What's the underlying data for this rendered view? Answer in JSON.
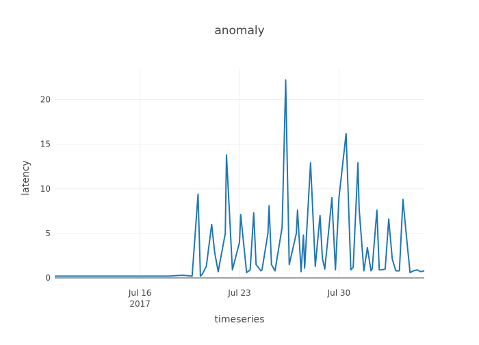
{
  "chart_data": {
    "type": "line",
    "title": "anomaly",
    "xlabel": "timeseries",
    "ylabel": "latency",
    "x_range": [
      "2017-07-10",
      "2017-08-05"
    ],
    "ylim": [
      0,
      23.5
    ],
    "x_ticks": [
      {
        "date": "2017-07-16",
        "label": "Jul 16",
        "sublabel": "2017"
      },
      {
        "date": "2017-07-23",
        "label": "Jul 23",
        "sublabel": ""
      },
      {
        "date": "2017-07-30",
        "label": "Jul 30",
        "sublabel": ""
      }
    ],
    "y_ticks": [
      0,
      5,
      10,
      15,
      20
    ],
    "grid": true,
    "color": "#1f77b4",
    "series": [
      {
        "x": [
          "2017-07-10 00:00",
          "2017-07-11 00:00",
          "2017-07-12 00:00",
          "2017-07-13 00:00",
          "2017-07-14 00:00",
          "2017-07-15 00:00",
          "2017-07-16 00:00",
          "2017-07-17 00:00",
          "2017-07-18 00:00",
          "2017-07-19 00:00",
          "2017-07-19 16:00",
          "2017-07-20 02:00",
          "2017-07-20 06:00",
          "2017-07-20 09:00",
          "2017-07-20 16:00",
          "2017-07-21 01:00",
          "2017-07-21 06:00",
          "2017-07-21 12:00",
          "2017-07-22 00:00",
          "2017-07-22 02:00",
          "2017-07-22 12:00",
          "2017-07-23 00:00",
          "2017-07-23 02:00",
          "2017-07-23 12:00",
          "2017-07-23 18:00",
          "2017-07-24 00:00",
          "2017-07-24 04:00",
          "2017-07-24 12:00",
          "2017-07-24 14:00",
          "2017-07-25 00:00",
          "2017-07-25 02:00",
          "2017-07-25 06:00",
          "2017-07-25 12:00",
          "2017-07-26 00:00",
          "2017-07-26 06:00",
          "2017-07-26 08:00",
          "2017-07-26 12:00",
          "2017-07-27 00:00",
          "2017-07-27 02:00",
          "2017-07-27 08:00",
          "2017-07-27 12:00",
          "2017-07-27 14:00",
          "2017-07-28 00:00",
          "2017-07-28 08:00",
          "2017-07-28 16:00",
          "2017-07-28 20:00",
          "2017-07-29 00:00",
          "2017-07-29 06:00",
          "2017-07-29 12:00",
          "2017-07-29 18:00",
          "2017-07-30 00:00",
          "2017-07-30 12:00",
          "2017-07-30 20:00",
          "2017-07-31 00:00",
          "2017-07-31 08:00",
          "2017-07-31 10:00",
          "2017-07-31 18:00",
          "2017-08-01 00:00",
          "2017-08-01 06:00",
          "2017-08-01 08:00",
          "2017-08-01 16:00",
          "2017-08-01 20:00",
          "2017-08-02 00:00",
          "2017-08-02 06:00",
          "2017-08-02 12:00",
          "2017-08-02 18:00",
          "2017-08-03 00:00",
          "2017-08-03 06:00",
          "2017-08-03 12:00",
          "2017-08-03 18:00",
          "2017-08-04 00:00",
          "2017-08-04 06:00",
          "2017-08-04 12:00",
          "2017-08-04 18:00",
          "2017-08-05 00:00"
        ],
        "y": [
          0.2,
          0.2,
          0.2,
          0.2,
          0.2,
          0.2,
          0.2,
          0.2,
          0.2,
          0.3,
          0.2,
          9.4,
          0.2,
          0.4,
          1.3,
          6.0,
          2.9,
          0.7,
          5.0,
          13.8,
          0.9,
          4.0,
          7.1,
          0.6,
          0.9,
          7.3,
          1.5,
          0.8,
          0.9,
          5.0,
          8.1,
          1.5,
          0.8,
          5.7,
          22.2,
          15.0,
          1.5,
          5.0,
          7.6,
          0.7,
          4.8,
          1.1,
          12.9,
          1.3,
          7.0,
          2.2,
          1.0,
          4.9,
          9.0,
          0.9,
          9.0,
          16.2,
          0.9,
          1.2,
          12.9,
          7.8,
          0.8,
          3.4,
          0.8,
          1.0,
          7.6,
          0.9,
          0.9,
          1.0,
          6.6,
          2.1,
          0.8,
          0.8,
          8.8,
          4.6,
          0.6,
          0.8,
          0.9,
          0.7,
          0.8
        ]
      }
    ]
  }
}
